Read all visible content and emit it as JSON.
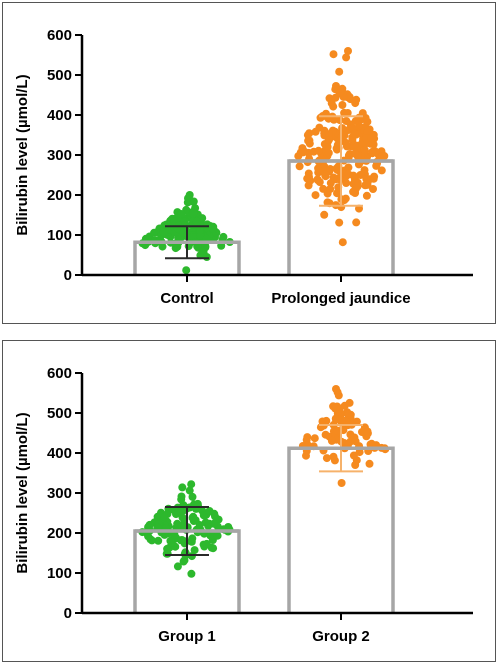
{
  "chart_data": [
    {
      "type": "scatter",
      "title": "",
      "xlabel": "",
      "ylabel": "Bilirubin level (µmol/L)",
      "ylim": [
        0,
        600
      ],
      "yticks": [
        0,
        100,
        200,
        300,
        400,
        500,
        600
      ],
      "grid": false,
      "categories": [
        "Control",
        "Prolonged jaundice"
      ],
      "bars": [
        {
          "category": "Control",
          "mean": 82,
          "sd": 40,
          "color": "#2db82d",
          "point_min": 12,
          "point_max": 200,
          "point_count": 170
        },
        {
          "category": "Prolonged jaundice",
          "mean": 285,
          "sd": 112,
          "color": "#f58a1f",
          "point_min": 82,
          "point_max": 560,
          "point_count": 230
        }
      ]
    },
    {
      "type": "scatter",
      "title": "",
      "xlabel": "",
      "ylabel": "Bilirubin level (µmol/L)",
      "ylim": [
        0,
        600
      ],
      "yticks": [
        0,
        100,
        200,
        300,
        400,
        500,
        600
      ],
      "grid": false,
      "categories": [
        "Group 1",
        "Group 2"
      ],
      "bars": [
        {
          "category": "Group 1",
          "mean": 205,
          "sd": 60,
          "color": "#2db82d",
          "point_min": 98,
          "point_max": 322,
          "point_count": 135
        },
        {
          "category": "Group 2",
          "mean": 412,
          "sd": 58,
          "color": "#f58a1f",
          "point_min": 325,
          "point_max": 560,
          "point_count": 85
        }
      ]
    }
  ],
  "colors": {
    "bar_outline": "#a6a6a6",
    "axis": "#000000",
    "error_bar_light": "#f6b26b",
    "error_bar_dark": "#2a2a2a"
  }
}
